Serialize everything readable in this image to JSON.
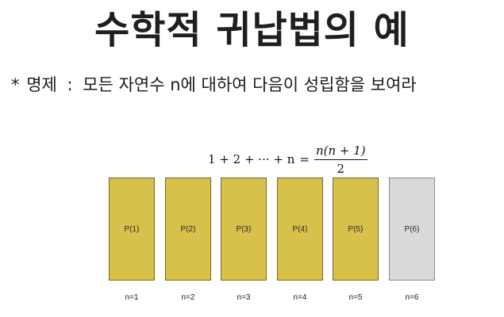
{
  "title": "수학적 귀납법의 예",
  "proposition": {
    "bullet": "*",
    "label": "명제",
    "separator": ":",
    "text": "모든 자연수 n에 대하여 다음이 성립함을 보여라"
  },
  "formula": {
    "lhs": "1 + 2 + ··· + n",
    "equals": "=",
    "numerator": "n(n + 1)",
    "denominator": "2"
  },
  "steps": [
    {
      "label": "P(1)",
      "n_label": "n=1",
      "state": "gold"
    },
    {
      "label": "P(2)",
      "n_label": "n=2",
      "state": "gold"
    },
    {
      "label": "P(3)",
      "n_label": "n=3",
      "state": "gold"
    },
    {
      "label": "P(4)",
      "n_label": "n=4",
      "state": "gold"
    },
    {
      "label": "P(5)",
      "n_label": "n=5",
      "state": "gold"
    },
    {
      "label": "P(6)",
      "n_label": "n=6",
      "state": "gray"
    }
  ]
}
